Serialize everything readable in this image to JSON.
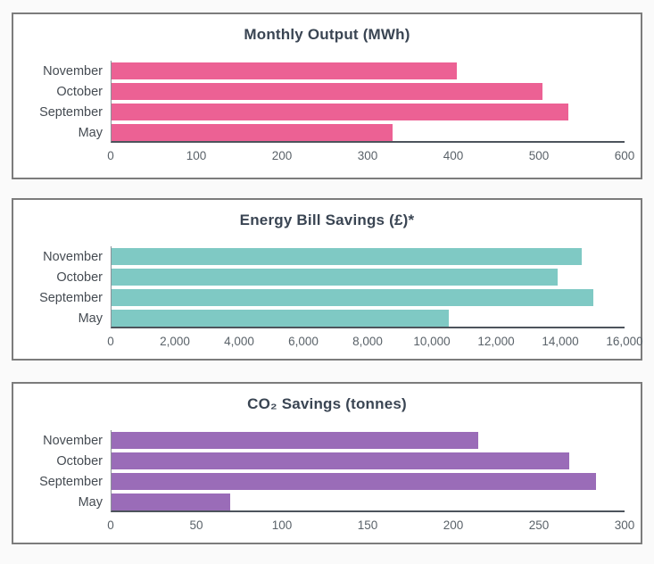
{
  "page": {
    "background": "#fafafa",
    "panel_border_color": "#7c7c7c",
    "title_color": "#3a4553",
    "category_label_color": "#454b52",
    "tick_label_color": "#5a6269",
    "x_axis_line_color": "#4d545c",
    "y_axis_line_color": "#8a9097"
  },
  "chart_data": [
    {
      "type": "bar",
      "orientation": "horizontal",
      "title": "Monthly Output (MWh)",
      "categories": [
        "November",
        "October",
        "September",
        "May"
      ],
      "values": [
        405,
        505,
        535,
        330
      ],
      "xlim": [
        0,
        600
      ],
      "xticks": [
        0,
        100,
        200,
        300,
        400,
        500,
        600
      ],
      "xtick_labels": [
        "0",
        "100",
        "200",
        "300",
        "400",
        "500",
        "600"
      ],
      "bar_color": "#ec6194",
      "grid": false,
      "legend": null
    },
    {
      "type": "bar",
      "orientation": "horizontal",
      "title": "Energy Bill Savings (£)*",
      "categories": [
        "November",
        "October",
        "September",
        "May"
      ],
      "values": [
        14700,
        13950,
        15050,
        10550
      ],
      "xlim": [
        0,
        16000
      ],
      "xticks": [
        0,
        2000,
        4000,
        6000,
        8000,
        10000,
        12000,
        14000,
        16000
      ],
      "xtick_labels": [
        "0",
        "2,000",
        "4,000",
        "6,000",
        "8,000",
        "10,000",
        "12,000",
        "14,000",
        "16,000"
      ],
      "bar_color": "#7fc9c4",
      "grid": false,
      "legend": null
    },
    {
      "type": "bar",
      "orientation": "horizontal",
      "title": "CO₂ Savings (tonnes)",
      "categories": [
        "November",
        "October",
        "September",
        "May"
      ],
      "values": [
        215,
        268,
        284,
        70
      ],
      "xlim": [
        0,
        300
      ],
      "xticks": [
        0,
        50,
        100,
        150,
        200,
        250,
        300
      ],
      "xtick_labels": [
        "0",
        "50",
        "100",
        "150",
        "200",
        "250",
        "300"
      ],
      "bar_color": "#9a6cb8",
      "grid": false,
      "legend": null
    }
  ]
}
